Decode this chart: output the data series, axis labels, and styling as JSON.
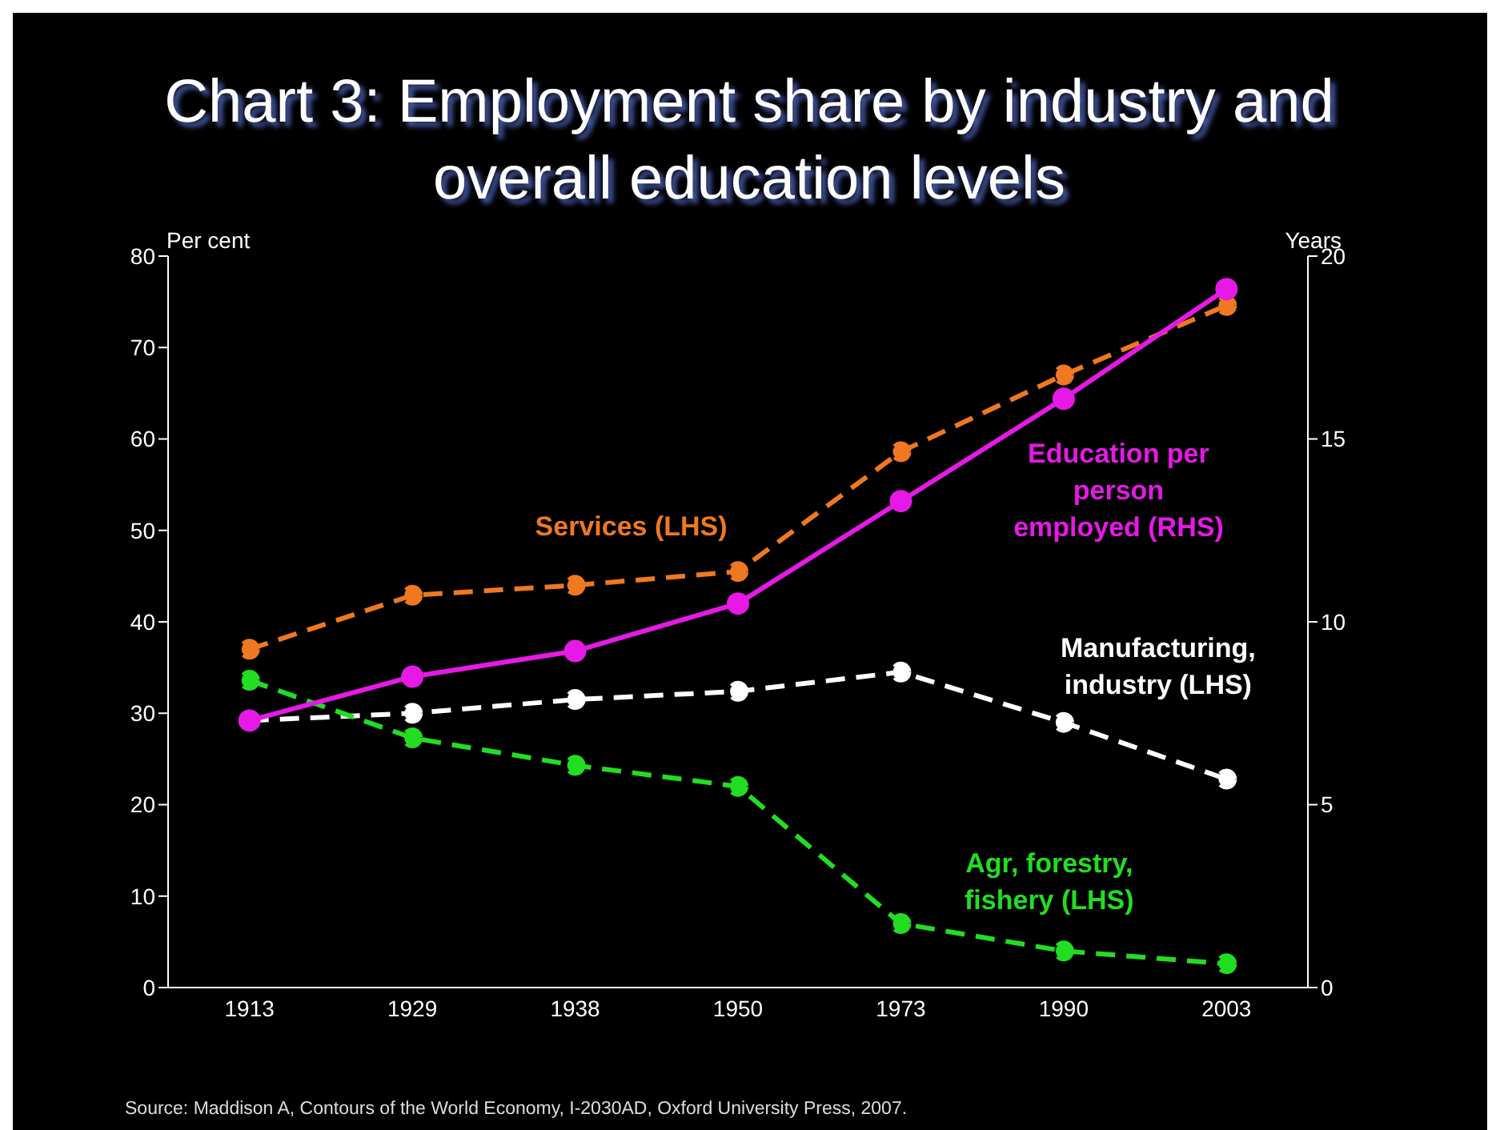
{
  "chart_data": {
    "type": "line",
    "title": "Chart 3: Employment share by industry and overall education levels",
    "ylabel": "Per cent",
    "y2label": "Years",
    "categories": [
      "1913",
      "1929",
      "1938",
      "1950",
      "1973",
      "1990",
      "2003"
    ],
    "series": [
      {
        "name": "Services (LHS)",
        "color": "#f07820",
        "line_style": "dashed",
        "values": [
          37,
          42.9,
          44,
          45.5,
          58.6,
          67,
          74.6
        ]
      },
      {
        "name": "Education per person employed (RHS)",
        "color": "#e619e6",
        "line_style": "solid",
        "axis": "y2",
        "values": [
          7.3,
          8.5,
          9.2,
          10.5,
          13.3,
          16.1,
          19.1
        ]
      },
      {
        "name": "Manufacturing, industry (LHS)",
        "color": "#ffffff",
        "line_style": "dashed",
        "values": [
          29.2,
          30,
          31.5,
          32.4,
          34.5,
          29,
          22.8
        ]
      },
      {
        "name": "Agr, forestry, fishery (LHS)",
        "color": "#22dd22",
        "line_style": "dashed",
        "values": [
          33.6,
          27.3,
          24.3,
          22,
          7,
          4,
          2.6
        ]
      }
    ],
    "ylim": [
      0,
      80
    ],
    "yticks": [
      0,
      10,
      20,
      30,
      40,
      50,
      60,
      70,
      80
    ],
    "y2lim": [
      0,
      20
    ],
    "y2ticks": [
      0,
      5,
      10,
      15,
      20
    ],
    "marker": "circle",
    "grid": false,
    "legend": false,
    "annotations": [
      "Source:  Maddison A, Contours of the World Economy, I-2030AD, Oxford University Press, 2007."
    ]
  }
}
